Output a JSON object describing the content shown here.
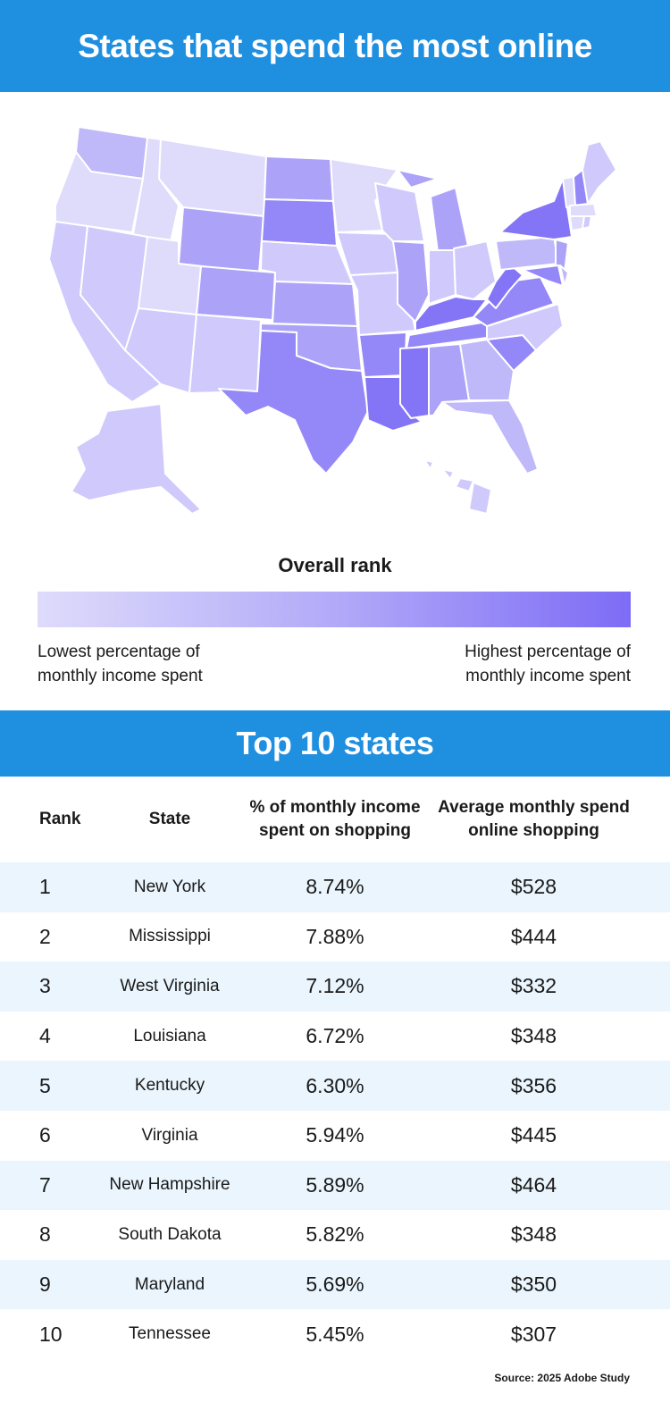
{
  "header": {
    "title": "States that spend the most online"
  },
  "map": {
    "colors": {
      "r1": "#dedbfb",
      "r2": "#cfcafb",
      "r3": "#bfb8f9",
      "r4": "#aca3f9",
      "r5": "#9487f7",
      "r6": "#8474f6"
    }
  },
  "legend": {
    "title": "Overall rank",
    "low_label": "Lowest percentage of monthly income spent",
    "high_label": "Highest percentage of monthly income spent",
    "color_low": "#dedbfb",
    "color_high": "#7d6cf6"
  },
  "section": {
    "title": "Top 10 states"
  },
  "table": {
    "headers": {
      "rank": "Rank",
      "state": "State",
      "pct": "% of monthly income spent on shopping",
      "spend": "Average monthly spend online shopping"
    },
    "rows": [
      {
        "rank": "1",
        "state": "New York",
        "pct": "8.74%",
        "spend": "$528"
      },
      {
        "rank": "2",
        "state": "Mississippi",
        "pct": "7.88%",
        "spend": "$444"
      },
      {
        "rank": "3",
        "state": "West Virginia",
        "pct": "7.12%",
        "spend": "$332"
      },
      {
        "rank": "4",
        "state": "Louisiana",
        "pct": "6.72%",
        "spend": "$348"
      },
      {
        "rank": "5",
        "state": "Kentucky",
        "pct": "6.30%",
        "spend": "$356"
      },
      {
        "rank": "6",
        "state": "Virginia",
        "pct": "5.94%",
        "spend": "$445"
      },
      {
        "rank": "7",
        "state": "New Hampshire",
        "pct": "5.89%",
        "spend": "$464"
      },
      {
        "rank": "8",
        "state": "South Dakota",
        "pct": "5.82%",
        "spend": "$348"
      },
      {
        "rank": "9",
        "state": "Maryland",
        "pct": "5.69%",
        "spend": "$350"
      },
      {
        "rank": "10",
        "state": "Tennessee",
        "pct": "5.45%",
        "spend": "$307"
      }
    ]
  },
  "footer": {
    "source": "Source: 2025 Adobe Study"
  }
}
